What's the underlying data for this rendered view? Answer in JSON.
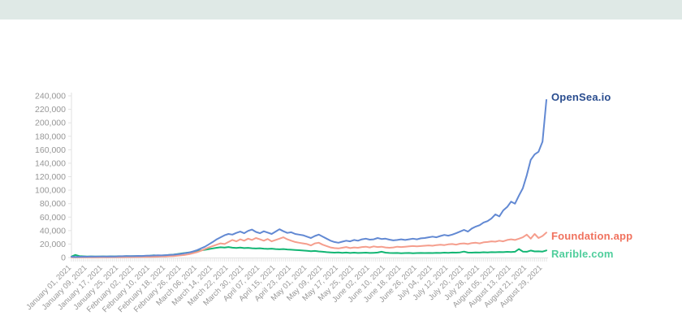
{
  "page": {
    "banner_color": "#dfe9e6",
    "background_color": "#ffffff"
  },
  "chart_data": {
    "type": "line",
    "title": "",
    "xlabel": "",
    "ylabel": "",
    "grid": "none",
    "legend_position": "line-end-labels-right",
    "axis_color": "#e2e2e2",
    "tick_text_color": "#969696",
    "x_axis": {
      "start_day": 0,
      "end_day": 242,
      "minor_tick_every_days": 1,
      "labeled_tick_every_days": 8,
      "tick_labels": [
        "January 01, 2021",
        "January 09, 2021",
        "January 17, 2021",
        "January 25, 2021",
        "February 02, 2021",
        "February 10, 2021",
        "February 18, 2021",
        "February 26, 2021",
        "March 06, 2021",
        "March 14, 2021",
        "March 22, 2021",
        "March 30, 2021",
        "April 07, 2021",
        "April 15, 2021",
        "April 23, 2021",
        "May 01, 2021",
        "May 09, 2021",
        "May 17, 2021",
        "May 25, 2021",
        "June 02, 2021",
        "June 10, 2021",
        "June 18, 2021",
        "June 26, 2021",
        "July 04, 2021",
        "July 12, 2021",
        "July 20, 2021",
        "July 28, 2021",
        "August 05, 2021",
        "August 13, 2021",
        "August 21, 2021",
        "August 29, 2021"
      ]
    },
    "y_axis": {
      "min": 0,
      "max": 240000,
      "tick_step": 20000,
      "tick_labels": [
        "0",
        "20,000",
        "40,000",
        "60,000",
        "80,000",
        "100,000",
        "120,000",
        "140,000",
        "160,000",
        "180,000",
        "200,000",
        "220,000",
        "240,000"
      ]
    },
    "sample_days": [
      0,
      2,
      4,
      6,
      8,
      10,
      12,
      14,
      16,
      18,
      20,
      22,
      24,
      26,
      28,
      30,
      32,
      34,
      36,
      38,
      40,
      42,
      44,
      46,
      48,
      50,
      52,
      54,
      56,
      58,
      60,
      62,
      64,
      66,
      68,
      70,
      72,
      74,
      76,
      78,
      80,
      82,
      84,
      86,
      88,
      90,
      92,
      94,
      96,
      98,
      100,
      102,
      104,
      106,
      108,
      110,
      112,
      114,
      116,
      118,
      120,
      122,
      124,
      126,
      128,
      130,
      132,
      134,
      136,
      138,
      140,
      142,
      144,
      146,
      148,
      150,
      152,
      154,
      156,
      158,
      160,
      162,
      164,
      166,
      168,
      170,
      172,
      174,
      176,
      178,
      180,
      182,
      184,
      186,
      188,
      190,
      192,
      194,
      196,
      198,
      200,
      202,
      204,
      206,
      208,
      210,
      212,
      214,
      216,
      218,
      220,
      222,
      224,
      226,
      228,
      230,
      232,
      234,
      236,
      238,
      240,
      242
    ],
    "series": [
      {
        "name": "OpenSea.io",
        "line_color": "#6289d3",
        "label_color": "#2a4d8f",
        "values": [
          1200,
          1000,
          1100,
          1300,
          1200,
          1400,
          1300,
          1500,
          1400,
          1600,
          1700,
          1600,
          1800,
          1900,
          2000,
          2100,
          2200,
          2400,
          2300,
          2600,
          2800,
          3000,
          3200,
          3100,
          3500,
          3800,
          4200,
          4800,
          5500,
          6500,
          7500,
          9000,
          11000,
          13500,
          16000,
          19500,
          23000,
          27000,
          30000,
          33000,
          35000,
          34000,
          36500,
          38500,
          36000,
          39500,
          41500,
          38000,
          36000,
          39000,
          37000,
          35000,
          38500,
          42000,
          39000,
          36500,
          37500,
          35000,
          34000,
          33000,
          31000,
          29000,
          32000,
          34000,
          31000,
          28000,
          25000,
          23000,
          22000,
          23500,
          25000,
          24000,
          26000,
          25000,
          27000,
          28000,
          26500,
          27000,
          29000,
          27500,
          28000,
          26500,
          25500,
          26000,
          27000,
          26000,
          27000,
          28000,
          27000,
          28500,
          29000,
          30000,
          31000,
          30000,
          32000,
          33500,
          32500,
          34000,
          36000,
          38500,
          41000,
          38500,
          43000,
          46000,
          48000,
          52000,
          54000,
          58000,
          64000,
          61000,
          70000,
          75000,
          83000,
          80000,
          92000,
          103000,
          122000,
          145000,
          153000,
          157000,
          172000,
          234000
        ]
      },
      {
        "name": "Foundation.app",
        "line_color": "#f59e8d",
        "label_color": "#f0725e",
        "values": [
          200,
          300,
          250,
          300,
          350,
          300,
          400,
          350,
          450,
          400,
          500,
          450,
          550,
          500,
          600,
          650,
          700,
          750,
          800,
          900,
          1000,
          1100,
          1200,
          1400,
          1600,
          1900,
          2200,
          2600,
          3200,
          4000,
          5000,
          6500,
          8000,
          10000,
          12500,
          15000,
          17000,
          19000,
          21000,
          20000,
          23000,
          26000,
          24000,
          27000,
          25000,
          28000,
          26000,
          29000,
          27000,
          25000,
          27500,
          24000,
          26000,
          28000,
          30000,
          27000,
          25000,
          23000,
          22000,
          21000,
          20000,
          18000,
          21000,
          22000,
          19000,
          17000,
          15000,
          14000,
          13500,
          14500,
          15500,
          14000,
          15000,
          14500,
          15500,
          16000,
          15000,
          16500,
          15500,
          16000,
          15000,
          14500,
          15000,
          16000,
          15500,
          16000,
          16500,
          17000,
          16500,
          17000,
          17500,
          18000,
          17500,
          18500,
          19000,
          18500,
          19500,
          20000,
          19000,
          20500,
          21000,
          20000,
          21500,
          22000,
          21000,
          22500,
          23000,
          24000,
          23500,
          25000,
          24000,
          26000,
          27000,
          26000,
          28000,
          30000,
          34000,
          28000,
          35000,
          29000,
          32000,
          37000
        ]
      },
      {
        "name": "Rarible.com",
        "line_color": "#13b674",
        "label_color": "#4fce9c",
        "values": [
          1500,
          3800,
          2200,
          1800,
          1600,
          1700,
          1500,
          1600,
          1700,
          1600,
          1800,
          1700,
          1900,
          1800,
          2000,
          1900,
          2000,
          2200,
          2100,
          2400,
          2600,
          3400,
          2800,
          3000,
          3400,
          3800,
          4400,
          5200,
          6000,
          6800,
          7500,
          8500,
          9500,
          10500,
          11500,
          12500,
          13500,
          14500,
          15200,
          14800,
          15500,
          14600,
          14200,
          14800,
          14000,
          14400,
          13800,
          13400,
          13800,
          13200,
          12800,
          13200,
          12600,
          12200,
          12600,
          12000,
          11600,
          11200,
          10800,
          10400,
          10000,
          9400,
          9800,
          9000,
          8600,
          8000,
          7600,
          7200,
          7600,
          7000,
          7400,
          6800,
          7200,
          6800,
          7000,
          7200,
          6800,
          7000,
          7400,
          8600,
          7200,
          6800,
          6600,
          6800,
          6400,
          6600,
          6800,
          6400,
          6600,
          6800,
          6600,
          6800,
          6600,
          7000,
          6800,
          7200,
          7000,
          7400,
          7200,
          7600,
          8800,
          7400,
          7200,
          7600,
          7400,
          7800,
          7600,
          8000,
          7800,
          8200,
          8000,
          8400,
          8200,
          8600,
          12500,
          8800,
          8600,
          10400,
          9000,
          9200,
          8800,
          10500
        ]
      }
    ]
  }
}
